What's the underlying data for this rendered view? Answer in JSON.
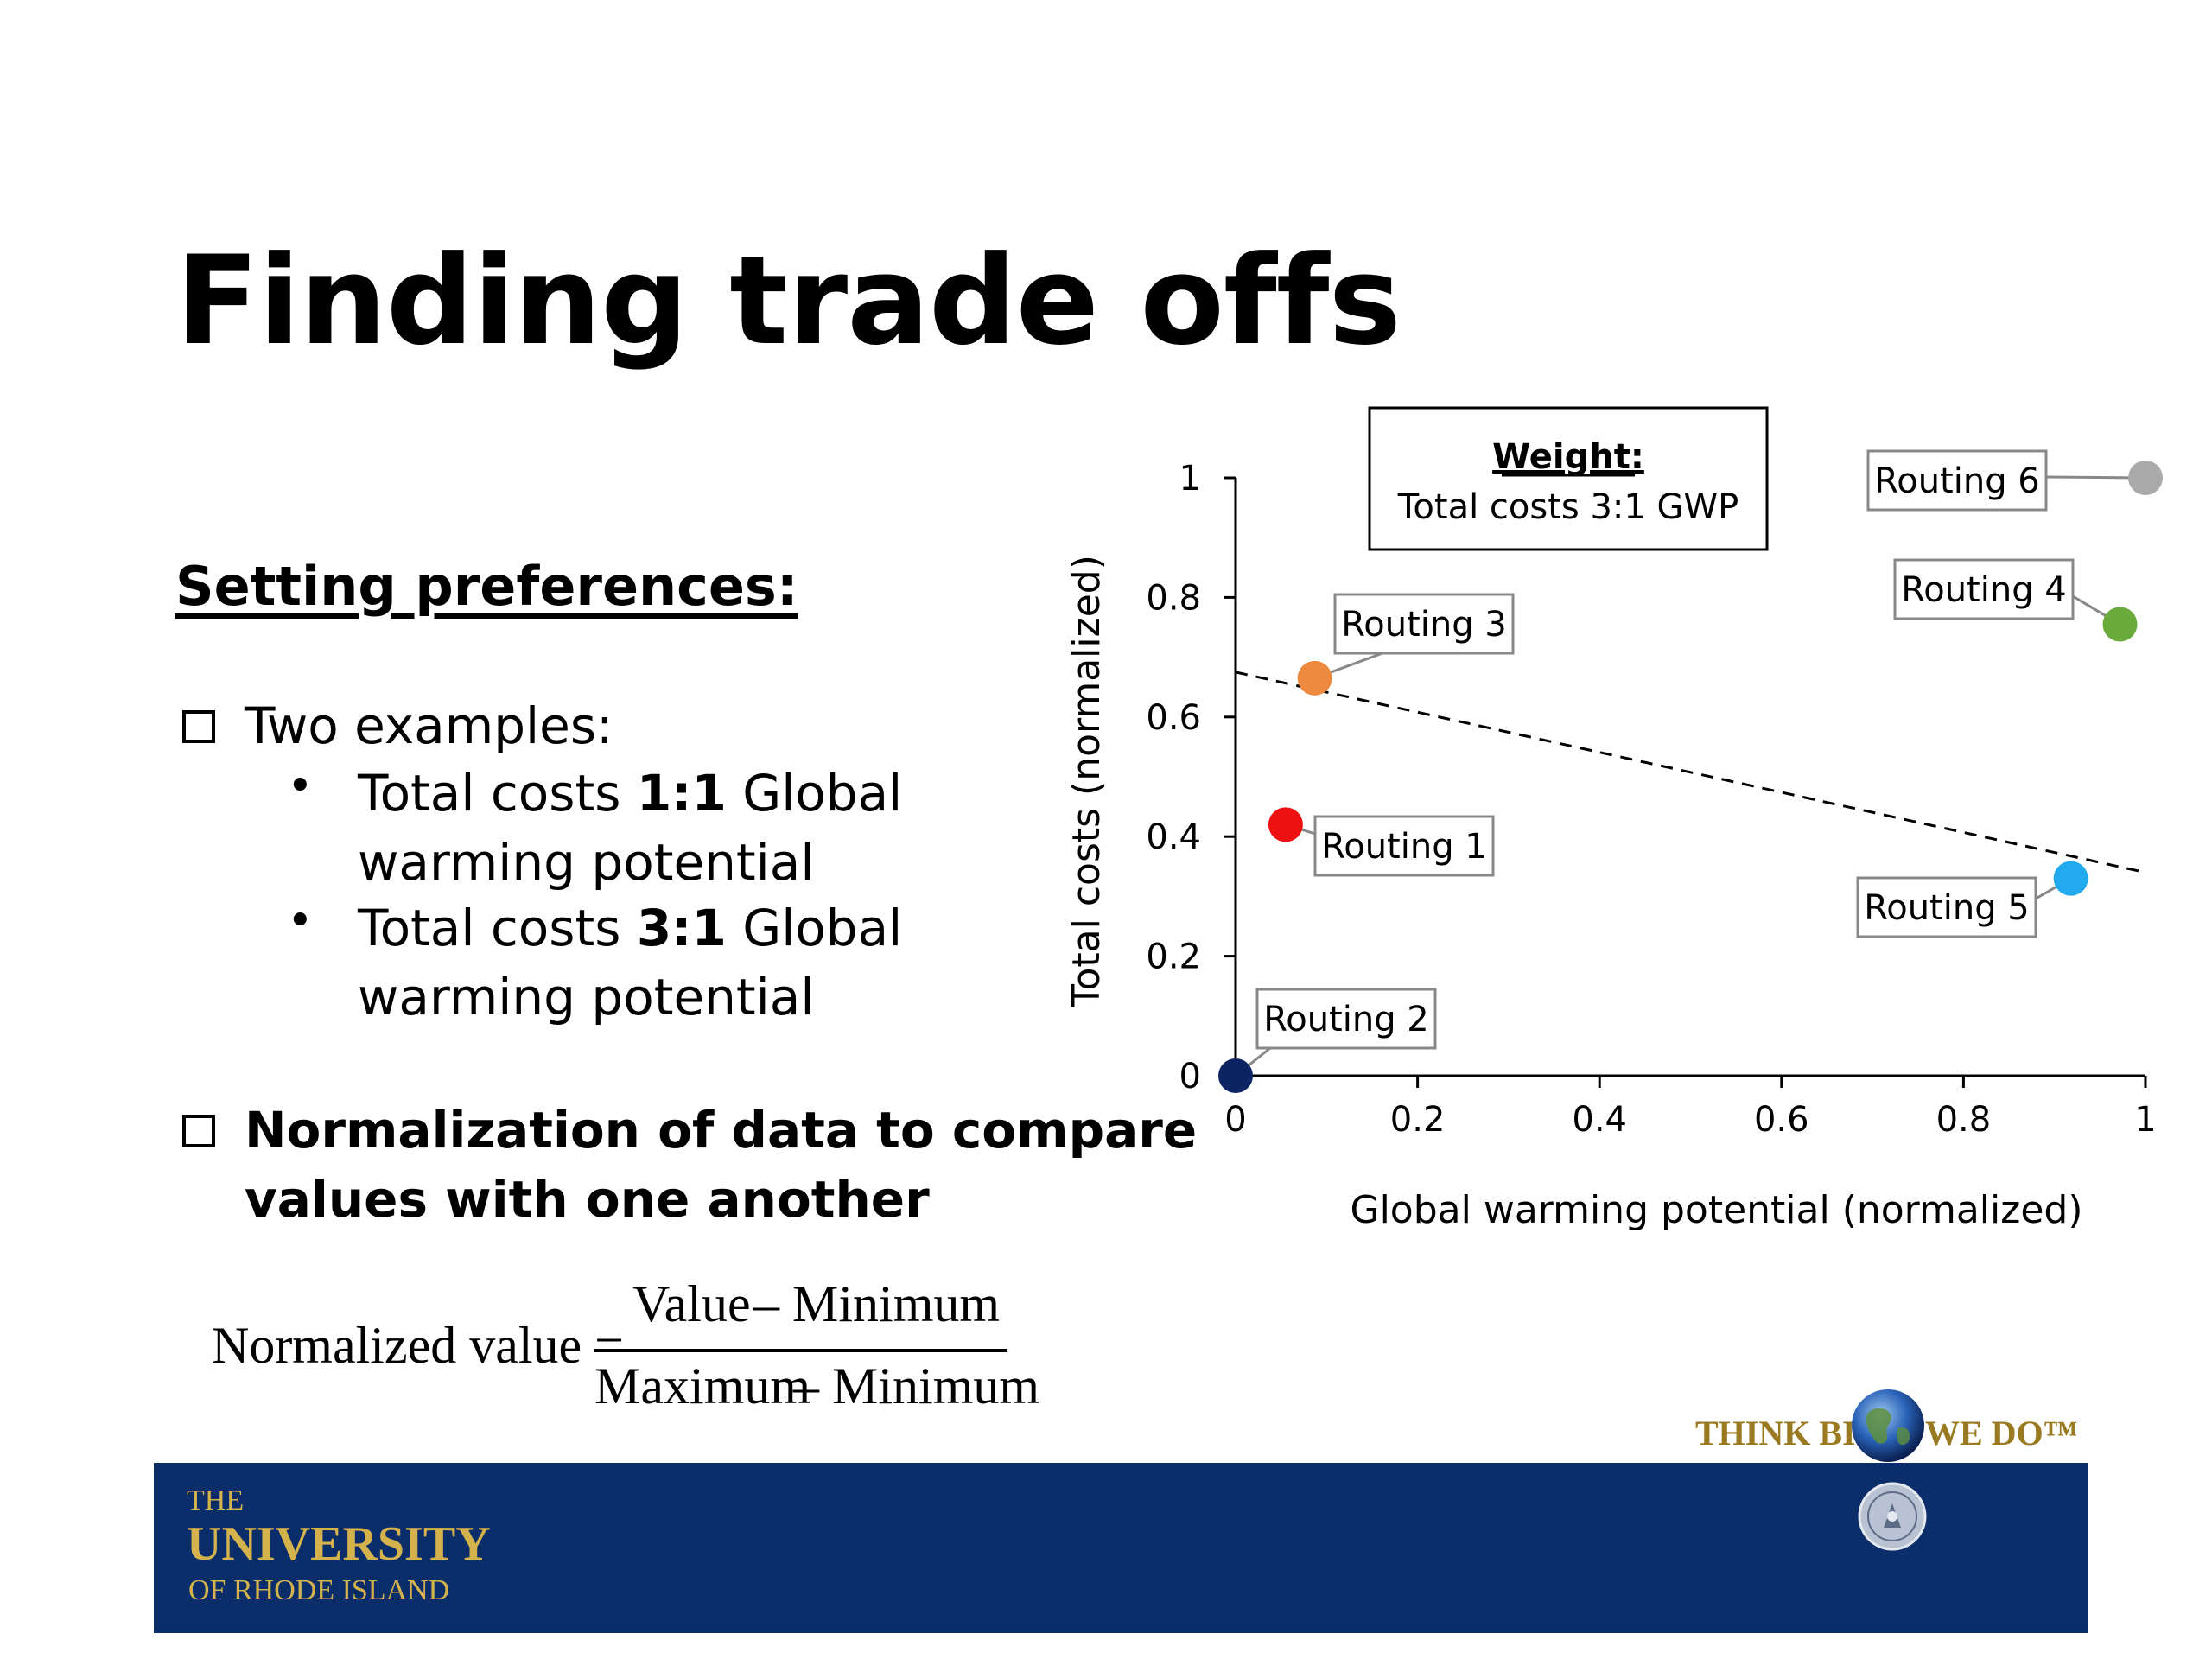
{
  "slide": {
    "title": "Finding trade offs",
    "section_heading": "Setting preferences:",
    "bullet1": {
      "label": "Two examples:",
      "sub": [
        {
          "pre": "Total costs ",
          "ratio": "1:1",
          "post": " Global",
          "line2": "warming potential"
        },
        {
          "pre": "Total costs ",
          "ratio": "3:1",
          "post": " Global",
          "line2": "warming potential"
        }
      ]
    },
    "bullet2": {
      "line1": "Normalization of data to compare",
      "line2": "values with one another"
    },
    "formula": {
      "lhs": "Normalized value =",
      "numerator_a": "Value",
      "numerator_b": "– Minimum",
      "denominator_a": "Maximum",
      "denominator_b": "– Minimum"
    },
    "footer": {
      "uri_line1": "THE",
      "uri_line2": "UNIVERSITY",
      "uri_line3": "OF RHODE ISLAND",
      "tagline_left": "THINK BIG",
      "tagline_right": "WE DO™"
    },
    "colors": {
      "footer_bar": "#0b2e6b",
      "uri_gold": "#d4b24c"
    }
  },
  "chart_data": {
    "type": "scatter",
    "xlabel": "Global warming potential (normalized)",
    "ylabel": "Total costs (normalized)",
    "xlim": [
      0,
      1
    ],
    "ylim": [
      0,
      1
    ],
    "xticks": [
      "0",
      "0.2",
      "0.4",
      "0.6",
      "0.8",
      "1"
    ],
    "yticks": [
      "0",
      "0.2",
      "0.4",
      "0.6",
      "0.8",
      "1"
    ],
    "grid": false,
    "annotation": {
      "title": "Weight:",
      "text": "Total costs 3:1 GWP"
    },
    "trade_off_line": {
      "style": "dashed",
      "x": [
        0,
        1
      ],
      "y": [
        0.675,
        0.34
      ]
    },
    "points": [
      {
        "label": "Routing 1",
        "x": 0.055,
        "y": 0.42,
        "color": "#ee1111"
      },
      {
        "label": "Routing 2",
        "x": 0.0,
        "y": 0.0,
        "color": "#0c2461"
      },
      {
        "label": "Routing 3",
        "x": 0.087,
        "y": 0.665,
        "color": "#ed8a3f"
      },
      {
        "label": "Routing 4",
        "x": 0.972,
        "y": 0.755,
        "color": "#6aaa3a"
      },
      {
        "label": "Routing 5",
        "x": 0.918,
        "y": 0.33,
        "color": "#22aaee"
      },
      {
        "label": "Routing 6",
        "x": 1.0,
        "y": 1.0,
        "color": "#aaaaaa"
      }
    ]
  }
}
